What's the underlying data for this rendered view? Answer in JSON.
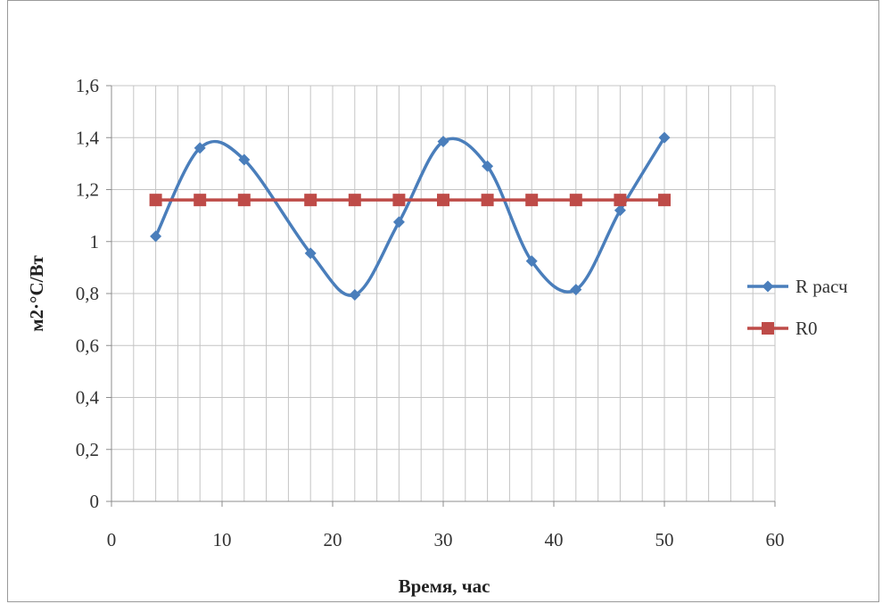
{
  "chart_data": {
    "type": "line",
    "title": "",
    "xlabel": "Время, час",
    "ylabel": "м2·°С/Вт",
    "xlim": [
      0,
      60
    ],
    "ylim": [
      0,
      1.6
    ],
    "x_ticks": [
      0,
      10,
      20,
      30,
      40,
      50,
      60
    ],
    "y_ticks": [
      0,
      0.2,
      0.4,
      0.6,
      0.8,
      1,
      1.2,
      1.4,
      1.6
    ],
    "x_tick_labels": [
      "0",
      "10",
      "20",
      "30",
      "40",
      "50",
      "60"
    ],
    "y_tick_labels": [
      "0",
      "0,2",
      "0,4",
      "0,6",
      "0,8",
      "1",
      "1,2",
      "1,4",
      "1,6"
    ],
    "x_minor_step": 2,
    "grid": true,
    "legend_position": "right",
    "series": [
      {
        "name": "R расч",
        "color": "#4a7ebb",
        "marker": "diamond",
        "smooth": true,
        "x": [
          4,
          8,
          12,
          18,
          22,
          26,
          30,
          34,
          38,
          42,
          46,
          50
        ],
        "y": [
          1.02,
          1.36,
          1.315,
          0.955,
          0.795,
          1.075,
          1.385,
          1.29,
          0.925,
          0.815,
          1.12,
          1.4
        ]
      },
      {
        "name": "R0",
        "color": "#be4b48",
        "marker": "square",
        "smooth": false,
        "x": [
          4,
          8,
          12,
          18,
          22,
          26,
          30,
          34,
          38,
          42,
          46,
          50
        ],
        "y": [
          1.16,
          1.16,
          1.16,
          1.16,
          1.16,
          1.16,
          1.16,
          1.16,
          1.16,
          1.16,
          1.16,
          1.16
        ]
      }
    ]
  }
}
